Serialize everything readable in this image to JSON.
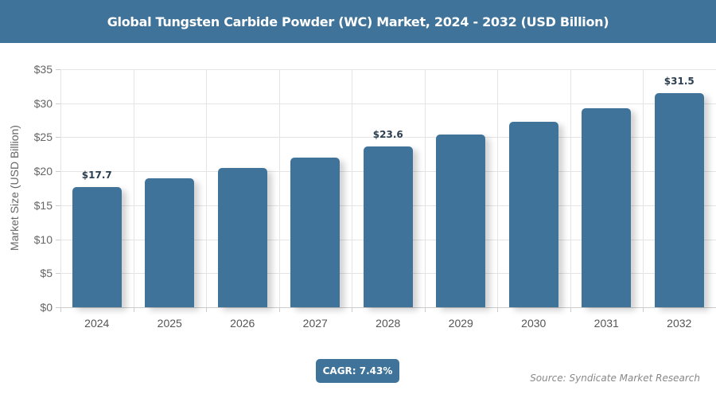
{
  "header": {
    "title": "Global Tungsten Carbide Powder (WC) Market, 2024 - 2032 (USD Billion)"
  },
  "chart_data": {
    "type": "bar",
    "title": "Global Tungsten Carbide Powder (WC) Market, 2024 - 2032 (USD Billion)",
    "xlabel": "",
    "ylabel": "Market Size (USD Billion)",
    "categories": [
      "2024",
      "2025",
      "2026",
      "2027",
      "2028",
      "2029",
      "2030",
      "2031",
      "2032"
    ],
    "values": [
      17.7,
      19.0,
      20.5,
      22.0,
      23.6,
      25.4,
      27.3,
      29.3,
      31.5
    ],
    "data_labels": {
      "0": "$17.7",
      "4": "$23.6",
      "8": "$31.5"
    },
    "ylim": [
      0,
      35
    ],
    "yticks": [
      "$0",
      "$5",
      "$10",
      "$15",
      "$20",
      "$25",
      "$30",
      "$35"
    ],
    "grid": true,
    "legend": "none",
    "bar_color": "#3f7399"
  },
  "footer": {
    "cagr": "CAGR: 7.43%",
    "source": "Source: Syndicate Market Research"
  }
}
